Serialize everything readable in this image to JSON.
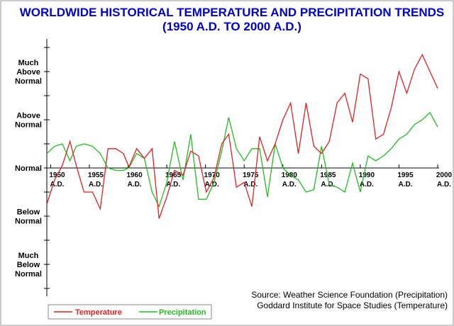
{
  "chart_data": {
    "type": "line",
    "title": "WORLDWIDE HISTORICAL TEMPERATURE AND PRECIPITATION TRENDS",
    "subtitle": "(1950 A.D. TO 2000 A.D.)",
    "y_category_labels": [
      {
        "lines": [
          "Much",
          "Above",
          "Normal"
        ],
        "value": 2
      },
      {
        "lines": [
          "Above",
          "Normal"
        ],
        "value": 1
      },
      {
        "lines": [
          "Normal"
        ],
        "value": 0
      },
      {
        "lines": [
          "Below",
          "Normal"
        ],
        "value": -1
      },
      {
        "lines": [
          "Much",
          "Below",
          "Normal"
        ],
        "value": -2
      }
    ],
    "ylim": [
      -2.8,
      3.2
    ],
    "xlim": [
      1949.5,
      2000
    ],
    "x_ticks": [
      {
        "year": 1950,
        "l1": "1950",
        "l2": "A.D."
      },
      {
        "year": 1955,
        "l1": "1955",
        "l2": "A.D."
      },
      {
        "year": 1960,
        "l1": "1960",
        "l2": "A.D."
      },
      {
        "year": 1965,
        "l1": "1965",
        "l2": "A.D."
      },
      {
        "year": 1970,
        "l1": "1970",
        "l2": "A.D."
      },
      {
        "year": 1975,
        "l1": "1975",
        "l2": "A.D."
      },
      {
        "year": 1980,
        "l1": "1980",
        "l2": "A.D."
      },
      {
        "year": 1985,
        "l1": "1985",
        "l2": "A.D."
      },
      {
        "year": 1990,
        "l1": "1990",
        "l2": "A.D."
      },
      {
        "year": 1995,
        "l1": "1995",
        "l2": "A.D."
      },
      {
        "year": 2000,
        "l1": "2000",
        "l2": "A.D."
      }
    ],
    "series": [
      {
        "name": "Temperature",
        "color": "#dd2222",
        "x": [
          1949.5,
          1950.5,
          1951.5,
          1952.5,
          1953.3,
          1954.3,
          1955.4,
          1956.4,
          1957.4,
          1958.4,
          1959.4,
          1960.1,
          1961.1,
          1962.1,
          1963.1,
          1964,
          1965,
          1966,
          1967.1,
          1968.1,
          1969.1,
          1970.1,
          1971.1,
          1972.1,
          1973,
          1974,
          1975,
          1976,
          1977,
          1978,
          1979,
          1980,
          1981,
          1982,
          1983,
          1984,
          1985,
          1986,
          1987,
          1988,
          1989,
          1990,
          1991,
          1992,
          1993,
          1994,
          1995,
          1996,
          1997,
          1998,
          1999,
          2000
        ],
        "y": [
          -0.75,
          -0.25,
          0.05,
          0.55,
          0.05,
          -0.5,
          -0.5,
          -0.85,
          0.4,
          0.4,
          0.3,
          0.02,
          0.4,
          0.2,
          0.4,
          -1.05,
          -0.6,
          -0.05,
          -0.15,
          0.35,
          0.25,
          -0.5,
          -0.2,
          0.5,
          0.7,
          -0.4,
          -0.3,
          -0.8,
          0.65,
          0.15,
          0.5,
          1.0,
          1.35,
          0.3,
          1.35,
          0.45,
          0.3,
          0.55,
          1.35,
          1.55,
          0.95,
          1.95,
          1.85,
          0.6,
          0.7,
          1.25,
          2.0,
          1.55,
          2.05,
          2.35,
          2.0,
          1.65
        ]
      },
      {
        "name": "Precipitation",
        "color": "#22bb22",
        "x": [
          1949.5,
          1950.5,
          1951.5,
          1952.5,
          1953.3,
          1954.3,
          1955.4,
          1956.4,
          1957.4,
          1958.4,
          1959.4,
          1960.1,
          1961.1,
          1962.1,
          1963.1,
          1964,
          1965,
          1966,
          1967.1,
          1968.1,
          1969.1,
          1970.1,
          1971.1,
          1972.1,
          1973,
          1974,
          1975,
          1976,
          1977,
          1978,
          1979,
          1980,
          1981,
          1982,
          1983,
          1984,
          1985,
          1986,
          1987,
          1988,
          1989,
          1990,
          1991,
          1992,
          1993,
          1994,
          1995,
          1996,
          1997,
          1998,
          1999,
          2000
        ],
        "y": [
          0.3,
          0.45,
          0.5,
          0.15,
          0.45,
          0.5,
          0.45,
          0.3,
          0.0,
          -0.05,
          -0.05,
          0.0,
          0.3,
          0.2,
          -0.5,
          -0.8,
          -0.3,
          0.55,
          -0.25,
          0.7,
          -0.65,
          -0.65,
          -0.3,
          0.35,
          1.05,
          0.4,
          0.15,
          0.4,
          0.4,
          -0.6,
          0.5,
          0.0,
          -0.15,
          -0.25,
          -0.5,
          -0.45,
          0.45,
          -0.35,
          -0.4,
          -0.5,
          0.1,
          -0.5,
          0.25,
          0.15,
          0.25,
          0.4,
          0.6,
          0.7,
          0.9,
          1.0,
          1.15,
          0.85
        ]
      }
    ],
    "source_lines": [
      "Source: Weather Science Foundation (Precipitation)",
      "Goddard Institute for Space Studies (Temperature)"
    ],
    "legend_position": "bottom-left",
    "grid": false
  }
}
